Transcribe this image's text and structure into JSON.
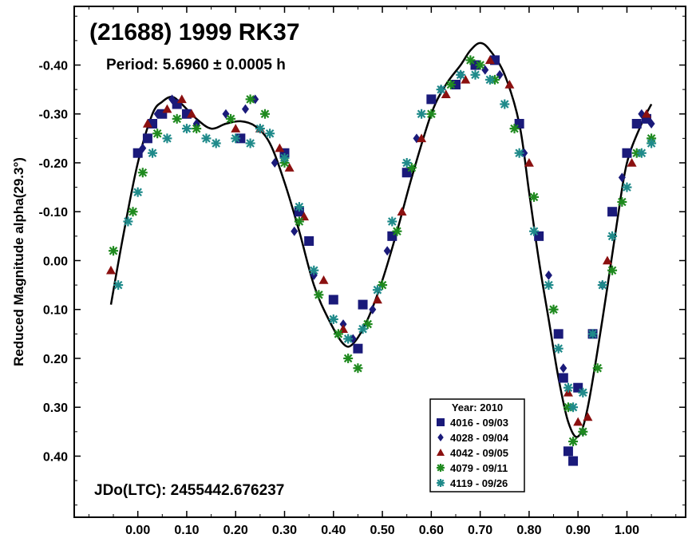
{
  "chart_data": {
    "type": "scatter",
    "title": "(21688) 1999 RK37",
    "period_label": "Period: 5.6960 ± 0.0005 h",
    "epoch_label": "JDo(LTC): 2455442.676237",
    "xlabel": "",
    "ylabel": "Reduced Magnitude alpha(29.3°)",
    "xlim": [
      -0.13,
      1.12
    ],
    "ylim": [
      0.525,
      -0.52
    ],
    "y_inverted": true,
    "x_ticks": [
      0.0,
      0.1,
      0.2,
      0.3,
      0.4,
      0.5,
      0.6,
      0.7,
      0.8,
      0.9,
      1.0
    ],
    "x_tick_labels": [
      "0.00",
      "0.10",
      "0.20",
      "0.30",
      "0.40",
      "0.50",
      "0.60",
      "0.70",
      "0.80",
      "0.90",
      "1.00"
    ],
    "y_ticks": [
      -0.4,
      -0.3,
      -0.2,
      -0.1,
      0.0,
      0.1,
      0.2,
      0.3,
      0.4
    ],
    "y_tick_labels": [
      "-0.40",
      "-0.30",
      "-0.20",
      "-0.10",
      "0.00",
      "0.10",
      "0.20",
      "0.30",
      "0.40"
    ],
    "grid": false,
    "legend": {
      "title": "Year: 2010",
      "position": "bottom-right",
      "entries": [
        {
          "label": "4016 - 09/03",
          "marker": "square",
          "color": "#1a1a7a"
        },
        {
          "label": "4028 - 09/04",
          "marker": "diamond",
          "color": "#1a1a7a"
        },
        {
          "label": "4042 - 09/05",
          "marker": "triangle",
          "color": "#8b1010"
        },
        {
          "label": "4079 - 09/11",
          "marker": "star",
          "color": "#1f8a1f"
        },
        {
          "label": "4119 - 09/26",
          "marker": "star",
          "color": "#1f8a8a"
        }
      ]
    },
    "fit_curve": {
      "color": "#000000",
      "x": [
        -0.055,
        -0.03,
        0.0,
        0.03,
        0.05,
        0.07,
        0.09,
        0.12,
        0.15,
        0.18,
        0.21,
        0.24,
        0.27,
        0.3,
        0.33,
        0.36,
        0.39,
        0.42,
        0.44,
        0.47,
        0.5,
        0.53,
        0.56,
        0.6,
        0.63,
        0.66,
        0.68,
        0.7,
        0.72,
        0.75,
        0.78,
        0.8,
        0.82,
        0.84,
        0.86,
        0.88,
        0.9,
        0.92,
        0.95,
        0.98,
        1.0,
        1.03,
        1.05
      ],
      "y": [
        0.09,
        -0.05,
        -0.2,
        -0.3,
        -0.325,
        -0.335,
        -0.32,
        -0.29,
        -0.27,
        -0.28,
        -0.285,
        -0.275,
        -0.24,
        -0.16,
        -0.06,
        0.05,
        0.12,
        0.17,
        0.17,
        0.12,
        0.04,
        -0.06,
        -0.17,
        -0.3,
        -0.36,
        -0.4,
        -0.43,
        -0.445,
        -0.43,
        -0.38,
        -0.28,
        -0.14,
        0.0,
        0.12,
        0.24,
        0.33,
        0.36,
        0.3,
        0.12,
        -0.08,
        -0.2,
        -0.28,
        -0.32
      ]
    },
    "series": [
      {
        "name": "4016 - 09/03",
        "marker": "square",
        "color": "#1a1a7a",
        "x": [
          0.0,
          0.02,
          0.03,
          0.05,
          0.08,
          0.1,
          0.21,
          0.3,
          0.33,
          0.35,
          0.4,
          0.45,
          0.46,
          0.52,
          0.55,
          0.6,
          0.65,
          0.69,
          0.73,
          0.78,
          0.82,
          0.86,
          0.87,
          0.88,
          0.89,
          0.9,
          0.93,
          0.97,
          1.0,
          1.02,
          1.04
        ],
        "y": [
          -0.22,
          -0.25,
          -0.28,
          -0.3,
          -0.32,
          -0.3,
          -0.25,
          -0.22,
          -0.1,
          -0.04,
          0.08,
          0.18,
          0.09,
          -0.05,
          -0.18,
          -0.33,
          -0.36,
          -0.4,
          -0.41,
          -0.28,
          -0.05,
          0.15,
          0.24,
          0.39,
          0.41,
          0.26,
          0.15,
          -0.1,
          -0.22,
          -0.28,
          -0.29
        ]
      },
      {
        "name": "4028 - 09/04",
        "marker": "diamond",
        "color": "#1a1a7a",
        "x": [
          0.01,
          0.04,
          0.07,
          0.12,
          0.18,
          0.22,
          0.24,
          0.28,
          0.32,
          0.36,
          0.42,
          0.44,
          0.48,
          0.51,
          0.57,
          0.62,
          0.66,
          0.71,
          0.74,
          0.79,
          0.84,
          0.87,
          0.91,
          0.95,
          0.99,
          1.03,
          1.05
        ],
        "y": [
          -0.23,
          -0.3,
          -0.33,
          -0.28,
          -0.3,
          -0.31,
          -0.33,
          -0.2,
          -0.06,
          0.03,
          0.13,
          0.16,
          0.1,
          -0.02,
          -0.25,
          -0.35,
          -0.38,
          -0.39,
          -0.38,
          -0.22,
          0.03,
          0.22,
          0.35,
          0.05,
          -0.17,
          -0.3,
          -0.28
        ]
      },
      {
        "name": "4042 - 09/05",
        "marker": "triangle",
        "color": "#8b1010",
        "x": [
          -0.055,
          0.02,
          0.06,
          0.09,
          0.11,
          0.2,
          0.25,
          0.29,
          0.31,
          0.34,
          0.38,
          0.42,
          0.49,
          0.54,
          0.58,
          0.63,
          0.67,
          0.72,
          0.76,
          0.8,
          0.88,
          0.9,
          0.92,
          0.96,
          1.01,
          1.04
        ],
        "y": [
          0.02,
          -0.28,
          -0.31,
          -0.33,
          -0.3,
          -0.27,
          -0.27,
          -0.23,
          -0.19,
          -0.09,
          0.04,
          0.14,
          0.08,
          -0.1,
          -0.25,
          -0.34,
          -0.37,
          -0.41,
          -0.36,
          -0.2,
          0.27,
          0.33,
          0.32,
          0.0,
          -0.2,
          -0.3
        ]
      },
      {
        "name": "4079 - 09/11",
        "marker": "star",
        "color": "#1f8a1f",
        "x": [
          -0.05,
          -0.01,
          0.01,
          0.04,
          0.08,
          0.12,
          0.19,
          0.23,
          0.26,
          0.3,
          0.33,
          0.37,
          0.41,
          0.43,
          0.45,
          0.47,
          0.5,
          0.53,
          0.56,
          0.6,
          0.64,
          0.68,
          0.7,
          0.73,
          0.77,
          0.81,
          0.85,
          0.88,
          0.89,
          0.91,
          0.94,
          0.97,
          0.99,
          1.02,
          1.05
        ],
        "y": [
          -0.02,
          -0.1,
          -0.18,
          -0.26,
          -0.29,
          -0.27,
          -0.29,
          -0.33,
          -0.3,
          -0.2,
          -0.08,
          0.07,
          0.15,
          0.2,
          0.22,
          0.13,
          0.05,
          -0.06,
          -0.19,
          -0.3,
          -0.36,
          -0.41,
          -0.4,
          -0.37,
          -0.27,
          -0.13,
          0.1,
          0.3,
          0.37,
          0.35,
          0.22,
          0.02,
          -0.12,
          -0.22,
          -0.25
        ]
      },
      {
        "name": "4119 - 09/26",
        "marker": "star",
        "color": "#1f8a8a",
        "x": [
          -0.04,
          -0.02,
          0.0,
          0.03,
          0.06,
          0.1,
          0.14,
          0.16,
          0.2,
          0.23,
          0.25,
          0.27,
          0.3,
          0.33,
          0.36,
          0.4,
          0.43,
          0.46,
          0.49,
          0.52,
          0.55,
          0.58,
          0.62,
          0.66,
          0.69,
          0.72,
          0.75,
          0.78,
          0.81,
          0.84,
          0.86,
          0.88,
          0.89,
          0.91,
          0.93,
          0.95,
          0.97,
          1.0,
          1.03,
          1.05
        ],
        "y": [
          0.05,
          -0.08,
          -0.14,
          -0.22,
          -0.25,
          -0.27,
          -0.25,
          -0.24,
          -0.25,
          -0.24,
          -0.27,
          -0.26,
          -0.21,
          -0.11,
          0.02,
          0.12,
          0.16,
          0.14,
          0.06,
          -0.08,
          -0.2,
          -0.3,
          -0.35,
          -0.38,
          -0.38,
          -0.37,
          -0.32,
          -0.22,
          -0.06,
          0.05,
          0.18,
          0.26,
          0.3,
          0.27,
          0.15,
          0.05,
          -0.05,
          -0.15,
          -0.22,
          -0.24
        ]
      }
    ]
  }
}
